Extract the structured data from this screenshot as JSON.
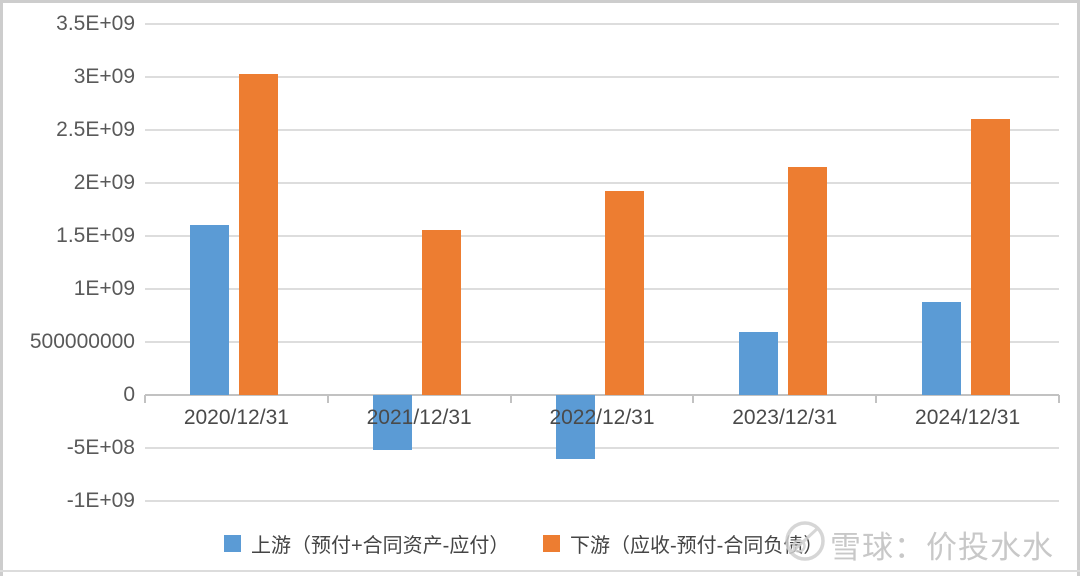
{
  "watermark": {
    "text": "雪球：价投水水",
    "logo_icon": "snowball-logo"
  },
  "chart_data": {
    "type": "bar",
    "title": "",
    "xlabel": "",
    "ylabel": "",
    "grid": true,
    "legend_position": "bottom",
    "ylim": [
      -1000000000,
      3500000000
    ],
    "categories": [
      "2020/12/31",
      "2021/12/31",
      "2022/12/31",
      "2023/12/31",
      "2024/12/31"
    ],
    "series": [
      {
        "key": "upstream",
        "name": "上游（预付+合同资产-应付）",
        "color": "#5B9BD5",
        "values": [
          1600000000,
          -520000000,
          -600000000,
          590000000,
          880000000
        ]
      },
      {
        "key": "downstream",
        "name": "下游（应收-预付-合同负债）",
        "color": "#ED7D31",
        "values": [
          3030000000,
          1560000000,
          1920000000,
          2150000000,
          2600000000
        ]
      }
    ],
    "y_ticks": [
      {
        "label": "3.5E+09",
        "value": 3500000000
      },
      {
        "label": "3E+09",
        "value": 3000000000
      },
      {
        "label": "2.5E+09",
        "value": 2500000000
      },
      {
        "label": "2E+09",
        "value": 2000000000
      },
      {
        "label": "1.5E+09",
        "value": 1500000000
      },
      {
        "label": "1E+09",
        "value": 1000000000
      },
      {
        "label": "500000000",
        "value": 500000000
      },
      {
        "label": "0",
        "value": 0
      },
      {
        "label": "-5E+08",
        "value": -500000000
      },
      {
        "label": "-1E+09",
        "value": -1000000000
      }
    ]
  }
}
